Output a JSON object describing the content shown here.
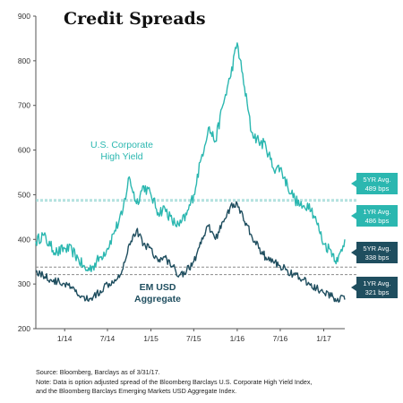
{
  "title": "Credit Spreads",
  "footnote": {
    "line1": "Source: Bloomberg, Barclays as of 3/31/17.",
    "line2": "Note: Data is option adjusted spread of the Bloomberg Barclays U.S. Corporate High Yield Index,",
    "line3": "and the Bloomberg Barclays Emerging Markets USD Aggregate Index."
  },
  "colors": {
    "hy": "#2bb7b0",
    "em": "#1f4e5f",
    "ref_light": "#8fd3d0",
    "ref_dark": "#8a8a8a",
    "axis": "#555555"
  },
  "chart_data": {
    "type": "line",
    "title": "Credit Spreads",
    "ylim": [
      200,
      900
    ],
    "yticks": [
      200,
      300,
      400,
      500,
      600,
      700,
      800,
      900
    ],
    "xlim": [
      "2013-09-01",
      "2017-03-31"
    ],
    "xticks": [
      {
        "label": "1/14",
        "date": "2014-01-01"
      },
      {
        "label": "7/14",
        "date": "2014-07-01"
      },
      {
        "label": "1/15",
        "date": "2015-01-01"
      },
      {
        "label": "7/15",
        "date": "2015-07-01"
      },
      {
        "label": "1/16",
        "date": "2016-01-01"
      },
      {
        "label": "7/16",
        "date": "2016-07-01"
      },
      {
        "label": "1/17",
        "date": "2017-01-01"
      }
    ],
    "grid": false,
    "series": [
      {
        "name": "U.S. Corporate High Yield",
        "color": "#2bb7b0",
        "x": [
          "2013-09-01",
          "2013-10-01",
          "2013-11-01",
          "2013-12-01",
          "2014-01-01",
          "2014-02-01",
          "2014-03-01",
          "2014-04-01",
          "2014-05-01",
          "2014-06-01",
          "2014-07-01",
          "2014-08-01",
          "2014-09-01",
          "2014-10-01",
          "2014-11-01",
          "2014-12-01",
          "2015-01-01",
          "2015-02-01",
          "2015-03-01",
          "2015-04-01",
          "2015-05-01",
          "2015-06-01",
          "2015-07-01",
          "2015-08-01",
          "2015-09-01",
          "2015-10-01",
          "2015-11-01",
          "2015-12-01",
          "2016-01-01",
          "2016-02-01",
          "2016-03-01",
          "2016-04-01",
          "2016-05-01",
          "2016-06-01",
          "2016-07-01",
          "2016-08-01",
          "2016-09-01",
          "2016-10-01",
          "2016-11-01",
          "2016-12-01",
          "2017-01-01",
          "2017-02-01",
          "2017-03-01",
          "2017-03-31"
        ],
        "values": [
          395,
          410,
          385,
          370,
          380,
          375,
          355,
          330,
          340,
          360,
          380,
          420,
          455,
          540,
          480,
          520,
          500,
          460,
          470,
          440,
          430,
          455,
          500,
          580,
          650,
          620,
          700,
          760,
          840,
          740,
          640,
          620,
          610,
          560,
          560,
          520,
          490,
          470,
          480,
          440,
          390,
          375,
          350,
          400
        ]
      },
      {
        "name": "EM USD Aggregate",
        "color": "#1f4e5f",
        "x": [
          "2013-09-01",
          "2013-10-01",
          "2013-11-01",
          "2013-12-01",
          "2014-01-01",
          "2014-02-01",
          "2014-03-01",
          "2014-04-01",
          "2014-05-01",
          "2014-06-01",
          "2014-07-01",
          "2014-08-01",
          "2014-09-01",
          "2014-10-01",
          "2014-11-01",
          "2014-12-01",
          "2015-01-01",
          "2015-02-01",
          "2015-03-01",
          "2015-04-01",
          "2015-05-01",
          "2015-06-01",
          "2015-07-01",
          "2015-08-01",
          "2015-09-01",
          "2015-10-01",
          "2015-11-01",
          "2015-12-01",
          "2016-01-01",
          "2016-02-01",
          "2016-03-01",
          "2016-04-01",
          "2016-05-01",
          "2016-06-01",
          "2016-07-01",
          "2016-08-01",
          "2016-09-01",
          "2016-10-01",
          "2016-11-01",
          "2016-12-01",
          "2017-01-01",
          "2017-02-01",
          "2017-03-01",
          "2017-03-31"
        ],
        "values": [
          330,
          320,
          310,
          305,
          300,
          290,
          275,
          265,
          270,
          285,
          300,
          310,
          330,
          390,
          420,
          390,
          380,
          350,
          360,
          340,
          320,
          330,
          350,
          390,
          430,
          400,
          440,
          470,
          480,
          440,
          410,
          380,
          360,
          350,
          340,
          330,
          320,
          310,
          300,
          290,
          280,
          272,
          268,
          265
        ]
      }
    ],
    "annotations": [
      {
        "text": "U.S. Corporate",
        "text2": "High Yield",
        "color": "#2bb7b0"
      },
      {
        "text": "EM USD",
        "text2": "Aggregate",
        "color": "#1f4e5f"
      }
    ],
    "reference_lines": [
      {
        "value": 489,
        "label1": "5YR Avg.",
        "label2": "489 bps",
        "color": "#2bb7b0"
      },
      {
        "value": 486,
        "label1": "1YR Avg.",
        "label2": "486 bps",
        "color": "#2bb7b0"
      },
      {
        "value": 338,
        "label1": "5YR Avg.",
        "label2": "338 bps",
        "color": "#1f4e5f"
      },
      {
        "value": 321,
        "label1": "1YR Avg.",
        "label2": "321 bps",
        "color": "#1f4e5f"
      }
    ]
  }
}
